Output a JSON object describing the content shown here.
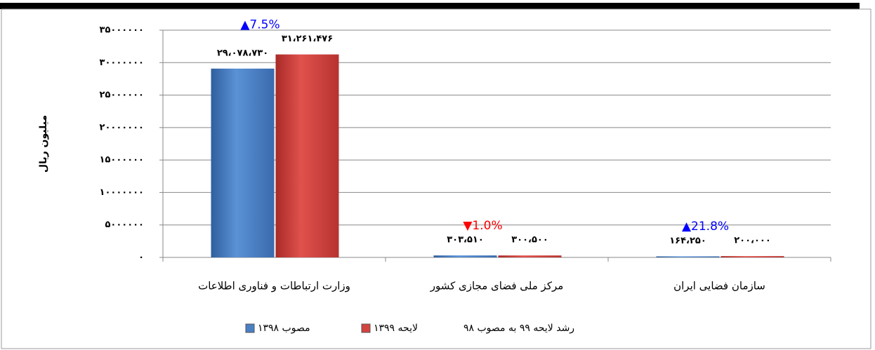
{
  "chart_data": {
    "type": "bar",
    "y_label": "میلیون ریال",
    "categories": [
      "وزارت ارتباطات و فناوری اطلاعات",
      "مرکز ملی فضای مجازی کشور",
      "سازمان فضایی ایران"
    ],
    "series": [
      {
        "name": "مصوب ۱۳۹۸",
        "color": "#4a80c4",
        "values": [
          29078730,
          303510,
          164250
        ],
        "value_labels": [
          "۲۹،۰۷۸،۷۳۰",
          "۳۰۳،۵۱۰",
          "۱۶۴،۲۵۰"
        ]
      },
      {
        "name": "لایحه ۱۳۹۹",
        "color": "#d4433f",
        "values": [
          31261476,
          300500,
          200000
        ],
        "value_labels": [
          "۳۱،۲۶۱،۴۷۶",
          "۳۰۰،۵۰۰",
          "۲۰۰،۰۰۰"
        ]
      }
    ],
    "growth": {
      "name": "رشد لایحه ۹۹ به مصوب ۹۸",
      "values": [
        7.5,
        -1.0,
        21.8
      ],
      "value_labels": [
        "▲7.5%",
        "▼1.0%",
        "▲21.8%"
      ],
      "up_color": "#0000ff",
      "down_color": "#ff0000"
    },
    "ylim": [
      0,
      35000000
    ],
    "yticks": [
      {
        "value": 0,
        "label": "۰"
      },
      {
        "value": 5000000,
        "label": "۵۰۰۰۰۰۰"
      },
      {
        "value": 10000000,
        "label": "۱۰۰۰۰۰۰۰"
      },
      {
        "value": 15000000,
        "label": "۱۵۰۰۰۰۰۰"
      },
      {
        "value": 20000000,
        "label": "۲۰۰۰۰۰۰۰"
      },
      {
        "value": 25000000,
        "label": "۲۵۰۰۰۰۰۰"
      },
      {
        "value": 30000000,
        "label": "۳۰۰۰۰۰۰۰"
      },
      {
        "value": 35000000,
        "label": "۳۵۰۰۰۰۰۰"
      }
    ],
    "grid": true
  }
}
